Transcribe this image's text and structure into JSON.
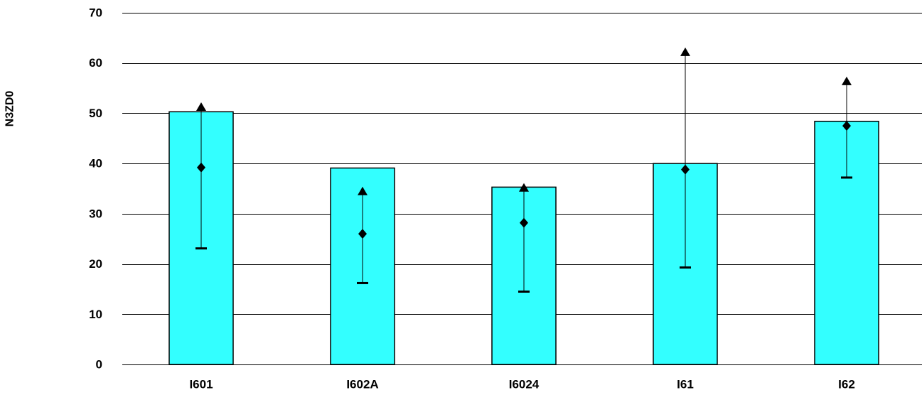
{
  "chart_data": {
    "type": "bar",
    "ylabel": "N3ZD0",
    "ylim": [
      0,
      70
    ],
    "yticks": [
      0,
      10,
      20,
      30,
      40,
      50,
      60,
      70
    ],
    "grid": true,
    "categories": [
      "I601",
      "I602A",
      "I6024",
      "I61",
      "I62"
    ],
    "series": [
      {
        "kind": "bar",
        "values": [
          50.3,
          39.1,
          35.3,
          40.0,
          48.4
        ]
      },
      {
        "kind": "max-marker",
        "values": [
          51.2,
          34.4,
          35.1,
          62.1,
          56.3
        ]
      },
      {
        "kind": "mean-marker",
        "values": [
          39.2,
          26.0,
          28.2,
          38.8,
          47.5
        ]
      },
      {
        "kind": "min-marker",
        "values": [
          23.1,
          16.2,
          14.5,
          19.3,
          37.2
        ]
      }
    ],
    "colors": {
      "bar_fill": "#33ffff",
      "bar_stroke": "#000000",
      "grid": "#000000",
      "marker": "#000000"
    }
  }
}
